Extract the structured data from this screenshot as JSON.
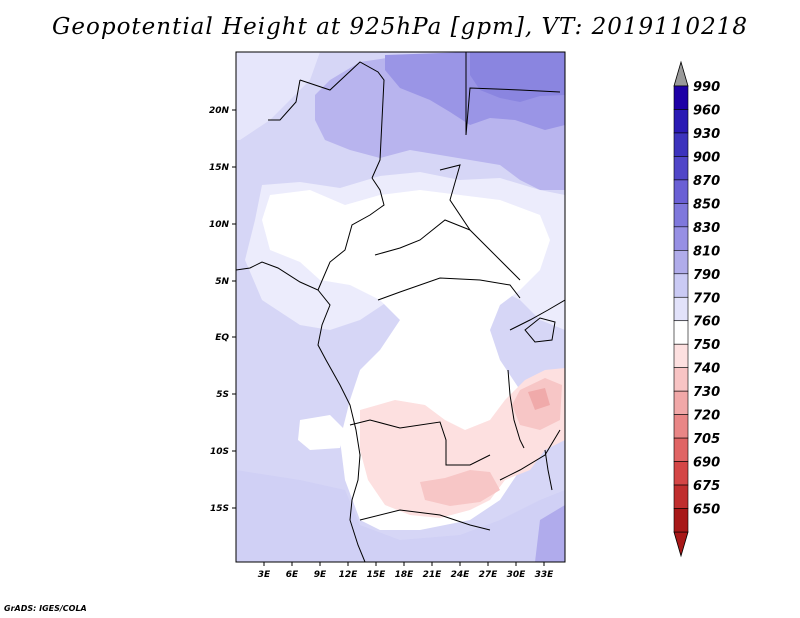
{
  "title": "Geopotential Height at 925hPa [gpm], VT: 2019110218",
  "credit": "GrADS: IGES/COLA",
  "map": {
    "lat_labels": [
      "20N",
      "15N",
      "10N",
      "5N",
      "EQ",
      "5S",
      "10S",
      "15S"
    ],
    "lon_labels": [
      "3E",
      "6E",
      "9E",
      "12E",
      "15E",
      "18E",
      "21E",
      "24E",
      "27E",
      "30E",
      "33E"
    ]
  },
  "colorbar": {
    "levels": [
      "990",
      "960",
      "930",
      "900",
      "870",
      "850",
      "830",
      "810",
      "790",
      "770",
      "760",
      "750",
      "740",
      "730",
      "720",
      "705",
      "690",
      "675",
      "650"
    ],
    "colors": [
      "#1e00a6",
      "#2a1ab4",
      "#3c33bd",
      "#5046c8",
      "#6a60d5",
      "#7f78dc",
      "#9790e4",
      "#b0acea",
      "#cacaf4",
      "#e2e2fa",
      "#ffffff",
      "#fde0e0",
      "#f8c4c4",
      "#f1a8a8",
      "#e98686",
      "#e06464",
      "#d44646",
      "#c02e2e",
      "#a81818"
    ]
  }
}
